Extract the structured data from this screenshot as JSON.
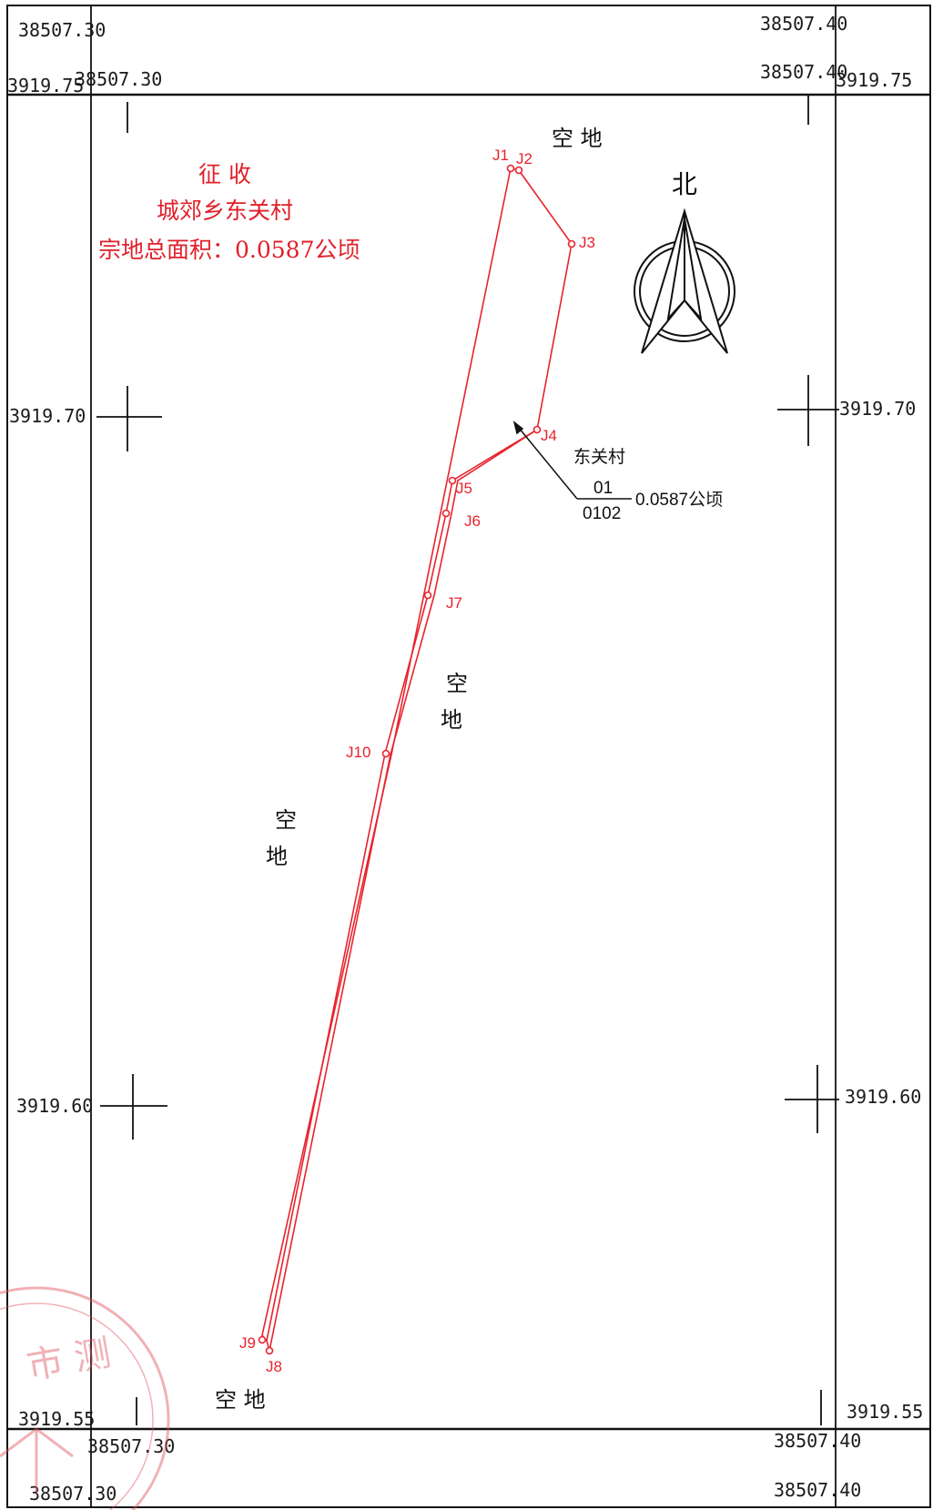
{
  "header": {
    "x_left_top_outer": "38507.30",
    "x_right_top_outer": "38507.40",
    "x_left_top_inner": "38507.30",
    "x_right_top_inner": "38507.40",
    "y_top_left": "3919.75",
    "y_top_right": "3919.75"
  },
  "grid": {
    "y_mid_left": "3919.70",
    "y_mid_right": "3919.70",
    "y_low_left": "3919.60",
    "y_low_right": "3919.60",
    "y_bottom_left": "3919.55",
    "y_bottom_right": "3919.55"
  },
  "footer": {
    "x_left_bottom_inner": "38507.30",
    "x_right_bottom_inner": "38507.40",
    "x_left_bottom_outer": "38507.30",
    "x_right_bottom_outer": "38507.40"
  },
  "title": {
    "line1": "征 收",
    "line2": "城郊乡东关村",
    "line3": "宗地总面积：0.0587公顷"
  },
  "north_arrow": {
    "label": "北",
    "icon": "north-arrow-icon"
  },
  "parcel": {
    "owner": "东关村",
    "code_top": "01",
    "code_bottom": "0102",
    "area": "0.0587公顷",
    "points": [
      "J1",
      "J2",
      "J3",
      "J4",
      "J5",
      "J6",
      "J7",
      "J8",
      "J9",
      "J10"
    ]
  },
  "neighbors": {
    "top": "空 地",
    "middle_1": "空",
    "middle_2": "地",
    "left_1": "空",
    "left_2": "地",
    "bottom": "空 地"
  },
  "seal": {
    "text": "市 测"
  },
  "colors": {
    "boundary": "#e8232d",
    "frame": "#111111"
  }
}
